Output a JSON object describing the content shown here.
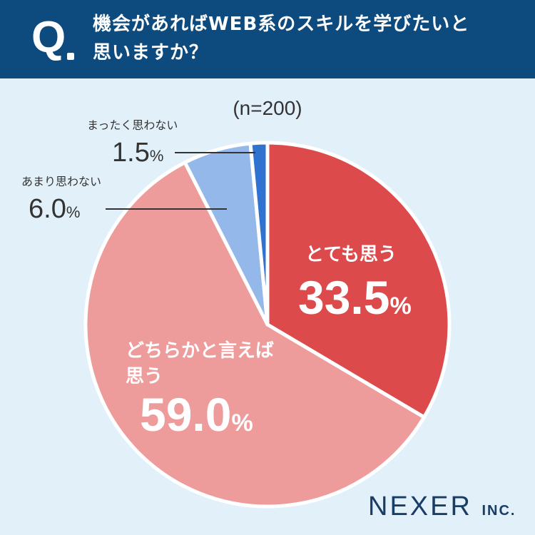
{
  "header": {
    "q_mark": "Q",
    "question_line1": "機会があればWEB系のスキルを学びたいと",
    "question_line2": "思いますか？"
  },
  "sample_note": "(n=200)",
  "logo": {
    "name": "NEXER",
    "suffix": "INC."
  },
  "percent_sign": "%",
  "colors": {
    "header_bg": "#0d4a7e",
    "background": "#e2f0fa",
    "strongly_agree": "#dc4a4c",
    "somewhat_agree": "#ee9c9b",
    "somewhat_disagree": "#94b8ea",
    "strongly_disagree": "#2f72d0"
  },
  "chart_data": {
    "type": "pie",
    "title": "機会があればWEB系のスキルを学びたいと思いますか？",
    "n": 200,
    "start_angle_deg": 0,
    "direction": "clockwise",
    "slices": [
      {
        "label": "とても思う",
        "value": 33.5,
        "display": "33.5",
        "color": "#dc4a4c"
      },
      {
        "label": "どちらかと言えば思う",
        "label_line1": "どちらかと言えば",
        "label_line2": "思う",
        "value": 59.0,
        "display": "59.0",
        "color": "#ee9c9b"
      },
      {
        "label": "あまり思わない",
        "value": 6.0,
        "display": "6.0",
        "color": "#94b8ea"
      },
      {
        "label": "まったく思わない",
        "value": 1.5,
        "display": "1.5",
        "color": "#2f72d0"
      }
    ]
  }
}
